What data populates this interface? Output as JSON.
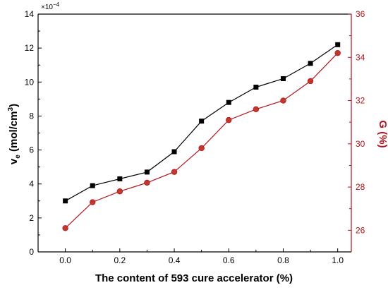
{
  "chart_data": {
    "type": "line",
    "x": [
      0.0,
      0.1,
      0.2,
      0.3,
      0.4,
      0.5,
      0.6,
      0.7,
      0.8,
      0.9,
      1.0
    ],
    "xlabel": "The content of 593 cure accelerator (%)",
    "xlim": [
      -0.1,
      1.05
    ],
    "xticks": [
      "0.0",
      "0.2",
      "0.4",
      "0.6",
      "0.8",
      "1.0"
    ],
    "y_left": {
      "label_main": "v",
      "label_sub": "e",
      "label_rest": " (mol/cm",
      "label_sup": "3",
      "label_end": ")",
      "multiplier_base": "×10",
      "multiplier_exp": "−4",
      "lim": [
        0,
        14
      ],
      "ticks": [
        "0",
        "2",
        "4",
        "6",
        "8",
        "10",
        "12",
        "14"
      ],
      "color": "#000000"
    },
    "y_right": {
      "label": "G (%)",
      "lim": [
        25,
        36
      ],
      "ticks": [
        "26",
        "28",
        "30",
        "32",
        "34",
        "36"
      ],
      "color": "#b5121b"
    },
    "series": [
      {
        "axis": "left",
        "marker": "square",
        "color": "#000000",
        "values": [
          3.0,
          3.9,
          4.3,
          4.7,
          5.9,
          7.7,
          8.8,
          9.7,
          10.2,
          11.1,
          12.2
        ]
      },
      {
        "axis": "right",
        "marker": "circle",
        "color": "#b5121b",
        "fill": "#c0392b",
        "values": [
          26.1,
          27.3,
          27.8,
          28.2,
          28.7,
          29.8,
          31.1,
          31.6,
          32.0,
          32.9,
          34.2
        ]
      }
    ],
    "grid": false,
    "legend": "none"
  }
}
